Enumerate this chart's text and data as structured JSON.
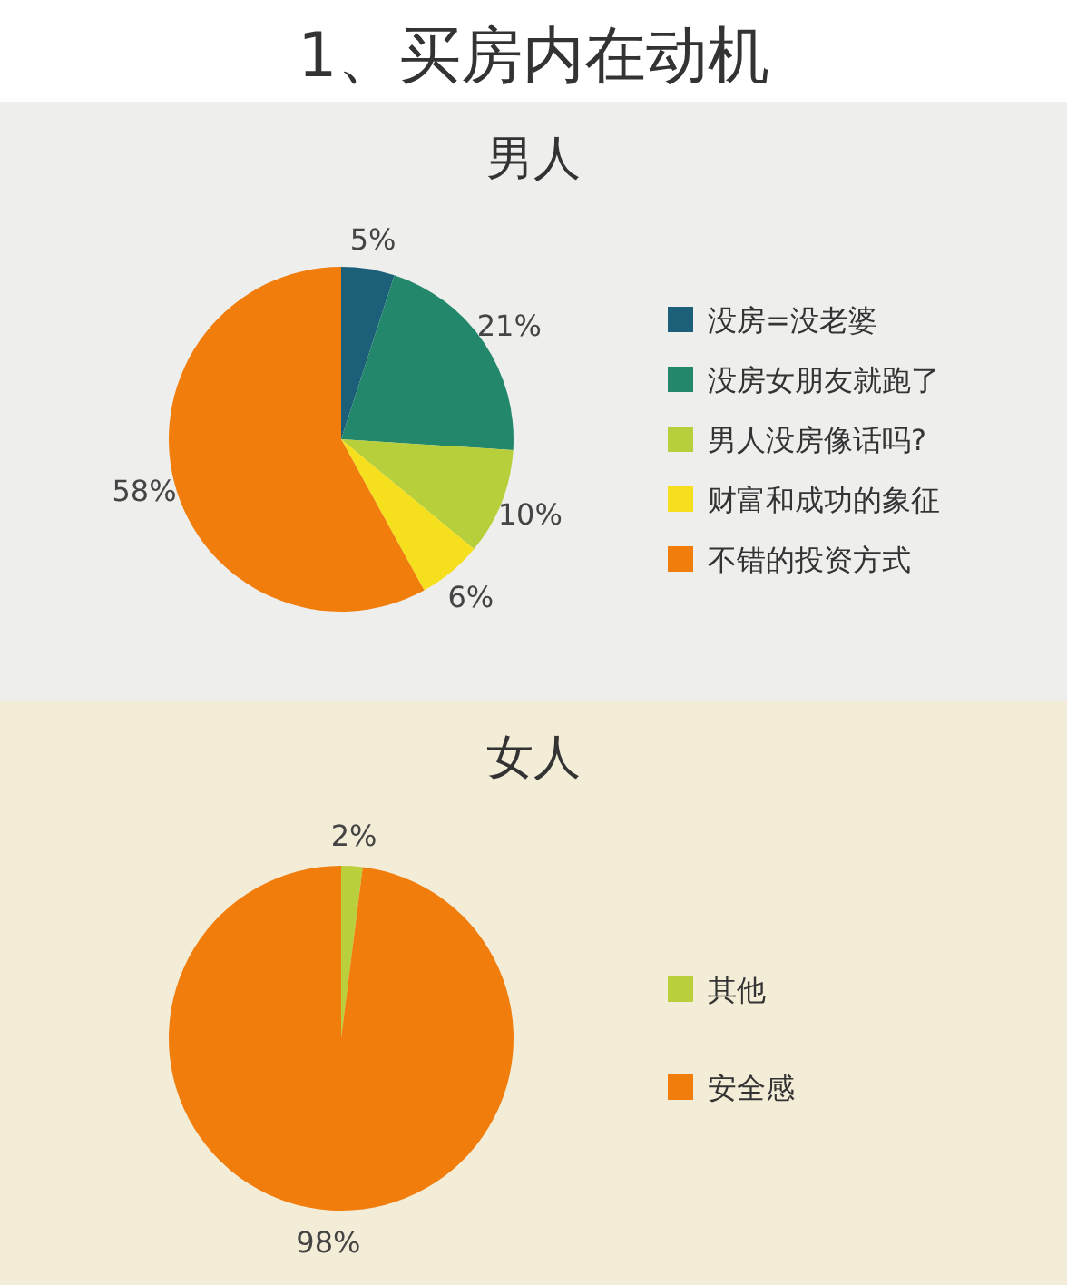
{
  "chart_data": [
    {
      "type": "pie",
      "title": "1、买房内在动机",
      "subtitle": "男人",
      "categories": [
        "没房=没老婆",
        "没房女朋友就跑了",
        "男人没房像话吗?",
        "财富和成功的象征",
        "不错的投资方式"
      ],
      "values": [
        5,
        21,
        10,
        6,
        58
      ],
      "value_labels": [
        "5%",
        "21%",
        "10%",
        "6%",
        "58%"
      ],
      "colors": [
        "#1b5f78",
        "#23876b",
        "#b7cf3a",
        "#f6df1c",
        "#f07d0c"
      ],
      "legend": "right"
    },
    {
      "type": "pie",
      "title": "女人",
      "categories": [
        "其他",
        "安全感"
      ],
      "values": [
        2,
        98
      ],
      "value_labels": [
        "2%",
        "98%"
      ],
      "colors": [
        "#b9cf3c",
        "#f07d0c"
      ],
      "legend": "right"
    }
  ]
}
